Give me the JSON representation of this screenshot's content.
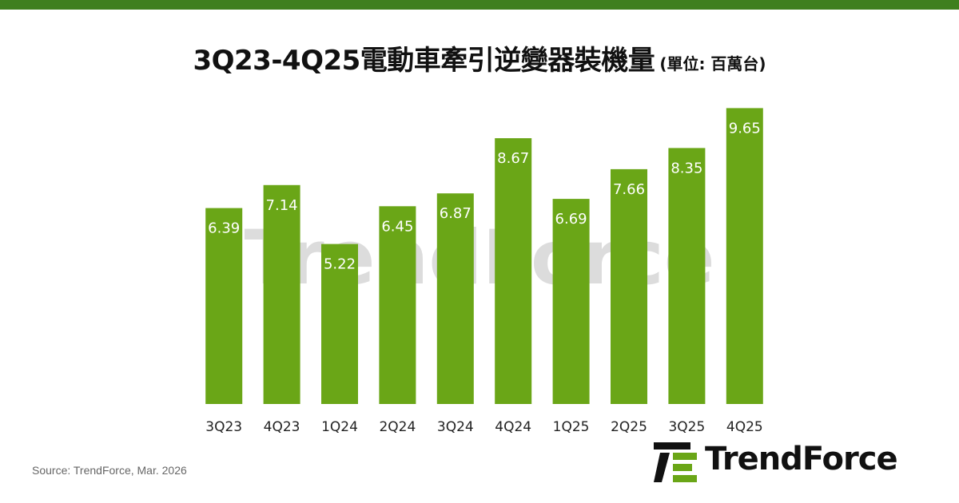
{
  "title": {
    "main": "3Q23-4Q25電動車牽引逆變器裝機量",
    "unit": "(單位: 百萬台)"
  },
  "colors": {
    "bar": "#6aa617",
    "top_bar": "#3f7f1e",
    "label": "#ffffff",
    "watermark": "#d9d9d9"
  },
  "watermark": {
    "text": "TrendForce"
  },
  "chart_data": {
    "type": "bar",
    "categories": [
      "3Q23",
      "4Q23",
      "1Q24",
      "2Q24",
      "3Q24",
      "4Q24",
      "1Q25",
      "2Q25",
      "3Q25",
      "4Q25"
    ],
    "values": [
      6.39,
      7.14,
      5.22,
      6.45,
      6.87,
      8.67,
      6.69,
      7.66,
      8.35,
      9.65
    ],
    "data_labels": [
      "6.39",
      "7.14",
      "5.22",
      "6.45",
      "6.87",
      "8.67",
      "6.69",
      "7.66",
      "8.35",
      "9.65"
    ],
    "ylim": [
      0,
      10
    ],
    "grid": false,
    "legend": "none"
  },
  "source": "Source: TrendForce, Mar. 2026",
  "logo": {
    "text": "TrendForce"
  }
}
